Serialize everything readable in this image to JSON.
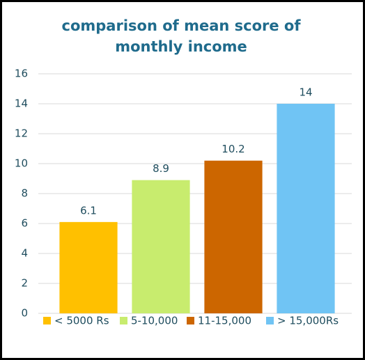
{
  "chart_data": {
    "type": "bar",
    "title": "comparison of mean score of monthly income",
    "categories": [
      "< 5000 Rs",
      "5-10,000",
      "11-15,000",
      "> 15,000Rs"
    ],
    "values": [
      6.1,
      8.9,
      10.2,
      14
    ],
    "colors": [
      "#ffc000",
      "#c8ec6e",
      "#cc6600",
      "#70c4f4"
    ],
    "ylim": [
      0,
      16
    ],
    "yticks": [
      0,
      2,
      4,
      6,
      8,
      10,
      12,
      14,
      16
    ],
    "grid": true,
    "legend": "bottom"
  }
}
